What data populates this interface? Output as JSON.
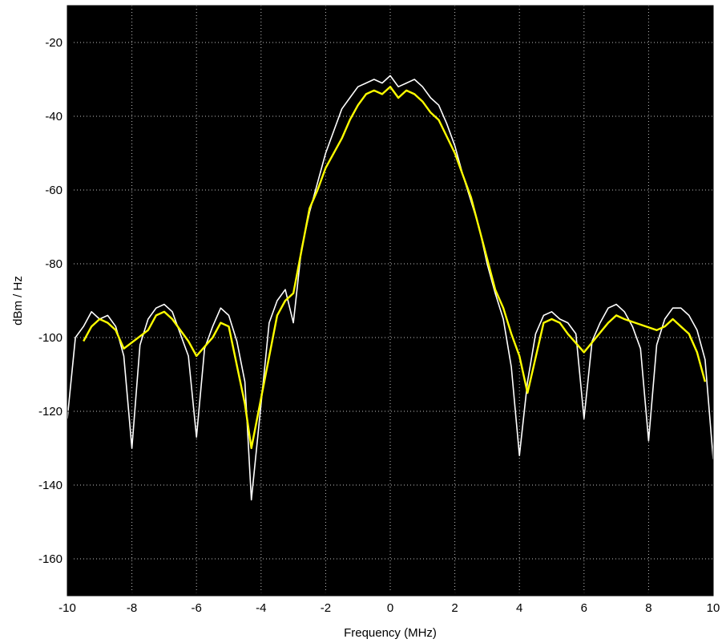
{
  "chart_data": {
    "type": "line",
    "title": "",
    "xlabel": "Frequency (MHz)",
    "ylabel": "dBm / Hz",
    "xlim": [
      -10,
      10
    ],
    "ylim": [
      -170,
      -10
    ],
    "xticks": [
      -10,
      -8,
      -6,
      -4,
      -2,
      0,
      2,
      4,
      6,
      8,
      10
    ],
    "xtick_labels": [
      "-10",
      "-8",
      "-6",
      "-4",
      "-2",
      "0",
      "2",
      "4",
      "6",
      "8",
      "10"
    ],
    "yticks": [
      -20,
      -40,
      -60,
      -80,
      -100,
      -120,
      -140,
      -160
    ],
    "ytick_labels": [
      "-20",
      "-40",
      "-60",
      "-80",
      "-100",
      "-120",
      "-140",
      "-160"
    ],
    "grid": true,
    "background": "#000000",
    "series": [
      {
        "color": "#ffffff",
        "x": [
          -10.0,
          -9.75,
          -9.5,
          -9.25,
          -9.0,
          -8.75,
          -8.5,
          -8.25,
          -8.0,
          -7.75,
          -7.5,
          -7.25,
          -7.0,
          -6.75,
          -6.5,
          -6.25,
          -6.0,
          -5.75,
          -5.5,
          -5.25,
          -5.0,
          -4.75,
          -4.5,
          -4.3,
          -4.0,
          -3.75,
          -3.5,
          -3.25,
          -3.0,
          -2.75,
          -2.5,
          -2.25,
          -2.0,
          -1.75,
          -1.5,
          -1.25,
          -1.0,
          -0.75,
          -0.5,
          -0.25,
          0.0,
          0.25,
          0.5,
          0.75,
          1.0,
          1.25,
          1.5,
          1.75,
          2.0,
          2.25,
          2.5,
          2.75,
          3.0,
          3.25,
          3.5,
          3.75,
          4.0,
          4.25,
          4.5,
          4.75,
          5.0,
          5.25,
          5.5,
          5.75,
          6.0,
          6.25,
          6.5,
          6.75,
          7.0,
          7.25,
          7.5,
          7.75,
          8.0,
          8.25,
          8.5,
          8.75,
          9.0,
          9.25,
          9.5,
          9.75,
          10.0
        ],
        "y": [
          -122,
          -100,
          -97,
          -93,
          -95,
          -94,
          -97,
          -105,
          -130,
          -102,
          -95,
          -92,
          -91,
          -93,
          -99,
          -105,
          -127,
          -103,
          -97,
          -92,
          -94,
          -101,
          -112,
          -144,
          -118,
          -96,
          -90,
          -87,
          -96,
          -76,
          -66,
          -58,
          -50,
          -44,
          -38,
          -35,
          -32,
          -31,
          -30,
          -31,
          -29,
          -32,
          -31,
          -30,
          -32,
          -35,
          -37,
          -42,
          -48,
          -56,
          -63,
          -70,
          -80,
          -88,
          -95,
          -108,
          -132,
          -112,
          -99,
          -94,
          -93,
          -95,
          -96,
          -99,
          -122,
          -101,
          -96,
          -92,
          -91,
          -93,
          -97,
          -103,
          -128,
          -102,
          -95,
          -92,
          -92,
          -94,
          -98,
          -106,
          -133
        ]
      },
      {
        "color": "#ffff00",
        "x": [
          -9.5,
          -9.25,
          -9.0,
          -8.75,
          -8.5,
          -8.25,
          -7.5,
          -7.25,
          -7.0,
          -6.75,
          -6.25,
          -6.0,
          -5.5,
          -5.25,
          -5.0,
          -4.5,
          -4.3,
          -3.5,
          -3.25,
          -3.0,
          -2.5,
          -2.25,
          -2.0,
          -1.5,
          -1.25,
          -1.0,
          -0.75,
          -0.5,
          -0.25,
          0.0,
          0.25,
          0.5,
          0.75,
          1.0,
          1.25,
          1.5,
          2.0,
          2.25,
          2.5,
          3.25,
          3.5,
          3.75,
          4.0,
          4.25,
          4.75,
          5.0,
          5.25,
          5.5,
          6.0,
          6.75,
          7.0,
          7.25,
          8.25,
          8.5,
          8.75,
          9.0,
          9.25,
          9.5,
          9.75
        ],
        "y": [
          -101,
          -97,
          -95,
          -96,
          -98,
          -103,
          -98,
          -94,
          -93,
          -95,
          -101,
          -105,
          -100,
          -96,
          -97,
          -118,
          -130,
          -94,
          -90,
          -88,
          -65,
          -60,
          -54,
          -46,
          -41,
          -37,
          -34,
          -33,
          -34,
          -32,
          -35,
          -33,
          -34,
          -36,
          -39,
          -41,
          -50,
          -56,
          -62,
          -87,
          -92,
          -99,
          -105,
          -115,
          -96,
          -95,
          -96,
          -99,
          -104,
          -96,
          -94,
          -95,
          -98,
          -97,
          -95,
          -97,
          -99,
          -104,
          -112
        ]
      }
    ]
  }
}
